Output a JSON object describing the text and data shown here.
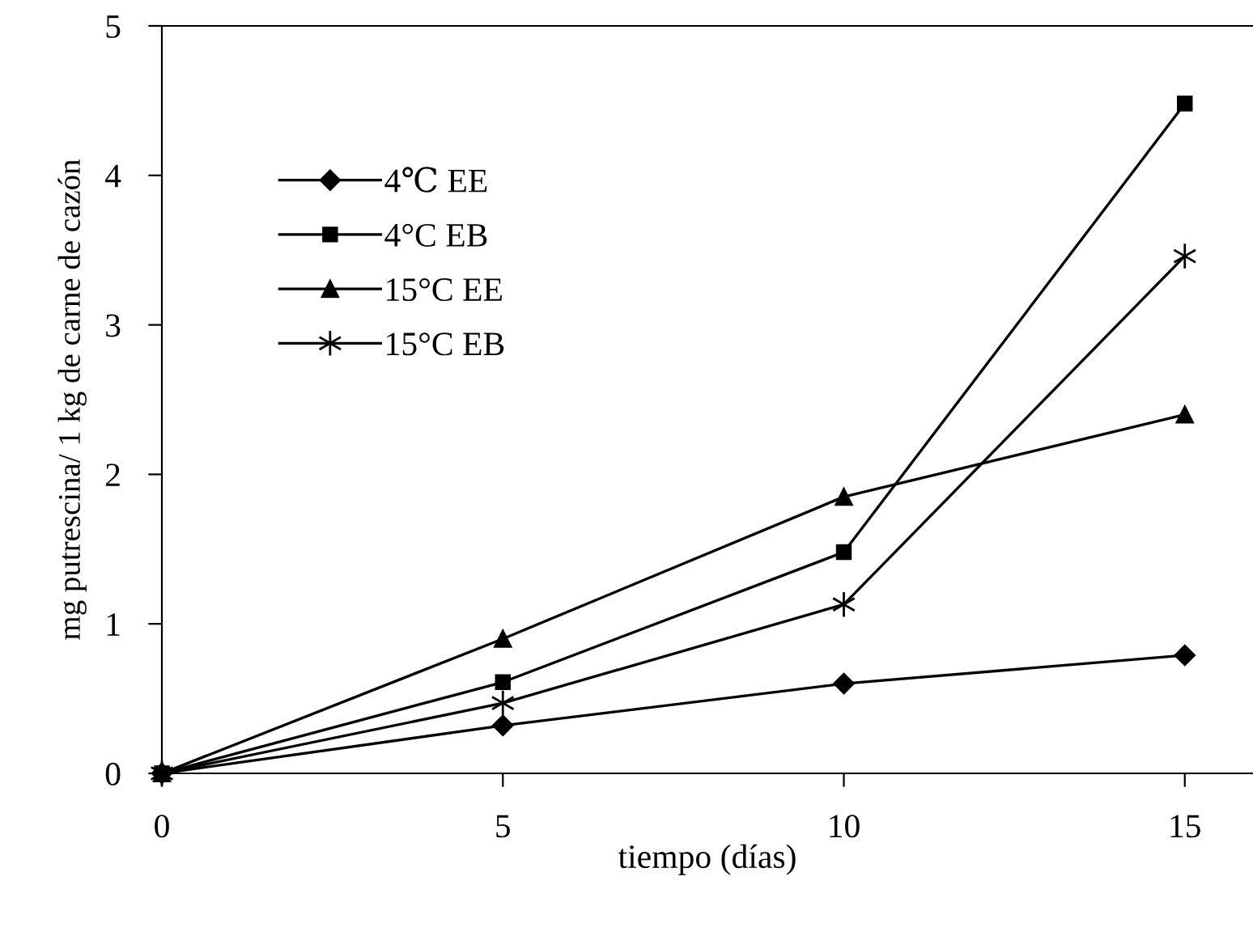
{
  "chart_data": {
    "type": "line",
    "xlabel": "tiempo (días)",
    "ylabel": "mg putrescina/ 1 kg de carne de cazón",
    "x": [
      0,
      5,
      10,
      15
    ],
    "series": [
      {
        "name": "4℃ EE",
        "color": "#000000",
        "marker": "diamond",
        "values": [
          0,
          0.32,
          0.6,
          0.79
        ]
      },
      {
        "name": "4°C EB",
        "color": "#000000",
        "marker": "square",
        "values": [
          0,
          0.61,
          1.48,
          4.48
        ]
      },
      {
        "name": "15°C EE",
        "color": "#000000",
        "marker": "triangle",
        "values": [
          0,
          0.9,
          1.85,
          2.4
        ]
      },
      {
        "name": "15°C EB",
        "color": "#000000",
        "marker": "cross",
        "values": [
          0,
          0.47,
          1.13,
          3.46
        ]
      }
    ],
    "xlim": [
      0,
      16
    ],
    "ylim": [
      0,
      5
    ],
    "xticks": [
      0,
      5,
      10,
      15
    ],
    "yticks": [
      0,
      1,
      2,
      3,
      4,
      5
    ],
    "grid": false,
    "legend": "top left",
    "line_style": "solid"
  }
}
